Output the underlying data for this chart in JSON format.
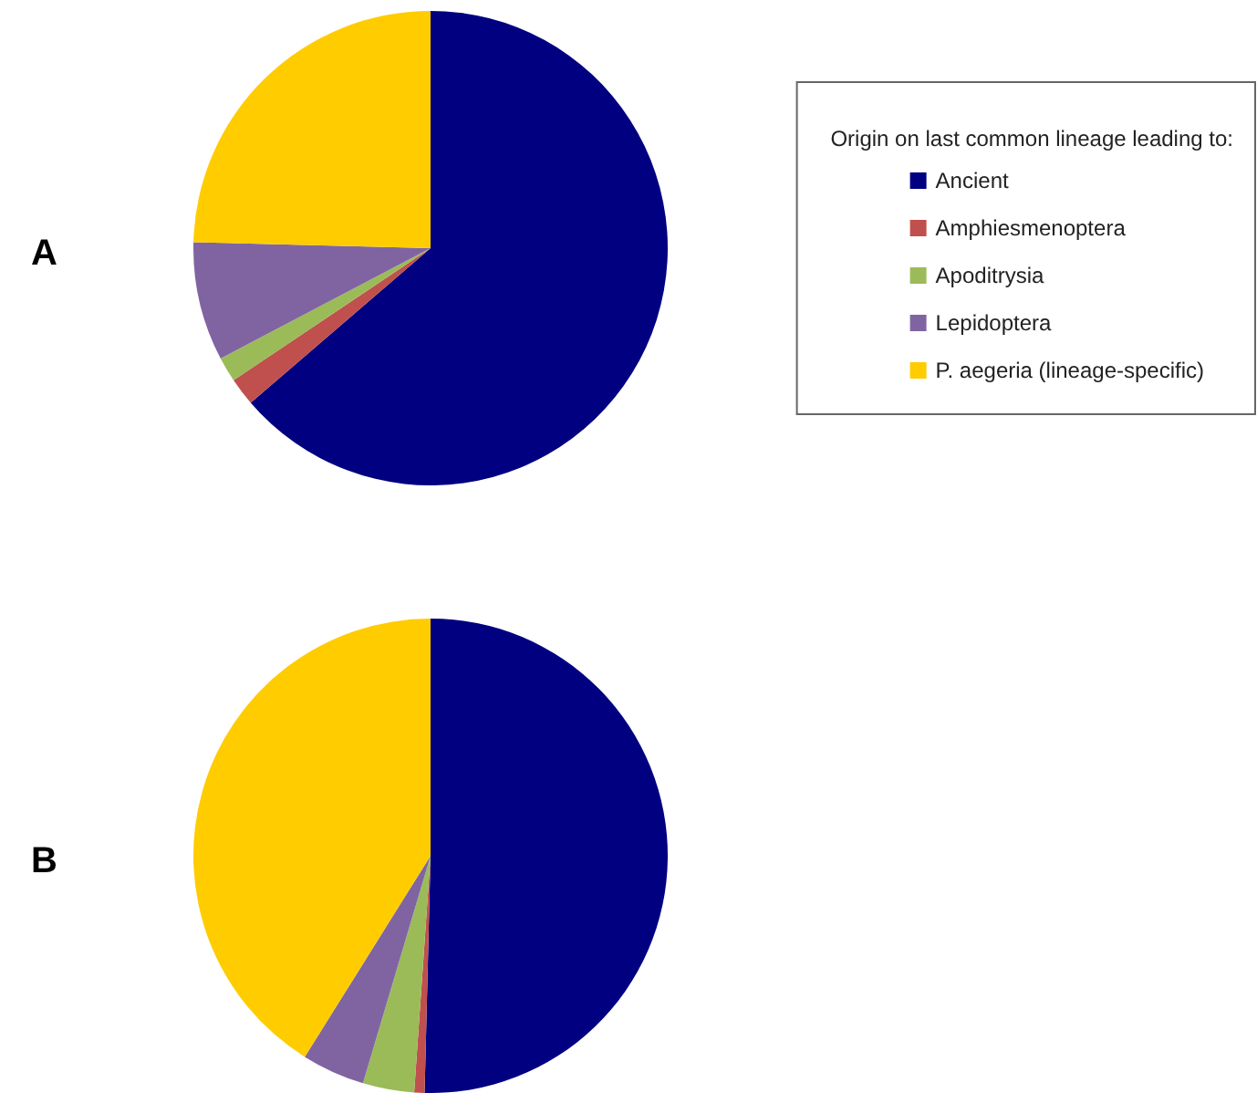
{
  "chart_data": [
    {
      "type": "pie",
      "title": "A",
      "legend_title": "Origin on last common lineage leading to:",
      "legend": "right",
      "categories": [
        "Ancient",
        "Amphiesmenoptera",
        "Apoditrysia",
        "Lepidoptera",
        "P. aegeria (lineage-specific)"
      ],
      "values": [
        63.7,
        1.9,
        1.7,
        8.1,
        24.6
      ],
      "colors": [
        "#000080",
        "#c0504d",
        "#9bbb59",
        "#8064a2",
        "#ffcc00"
      ]
    },
    {
      "type": "pie",
      "title": "B",
      "legend": false,
      "categories": [
        null,
        null,
        null,
        null,
        null
      ],
      "values": [
        50.4,
        0.7,
        3.5,
        4.3,
        41.1
      ],
      "colors": [
        "#000080",
        "#c0504d",
        "#9bbb59",
        "#8064a2",
        "#ffcc00"
      ]
    }
  ]
}
